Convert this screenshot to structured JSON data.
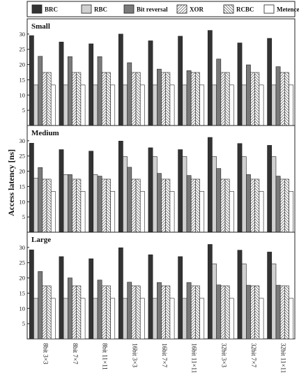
{
  "chart_data": {
    "type": "bar",
    "ylabel": "Access latency [ns]",
    "ylim": [
      0,
      35
    ],
    "yticks": [
      5,
      10,
      15,
      20,
      25,
      30
    ],
    "categories": [
      "8bit 3×3",
      "8bit 7×7",
      "8bit 11×11",
      "16bit 3×3",
      "16bit 7×7",
      "16bit 11×11",
      "32bit 3×3",
      "32bit 7×7",
      "32bit 11×11"
    ],
    "legend": [
      "BRC",
      "RBC",
      "Bit reversal",
      "XOR",
      "RCBC",
      "Metencephalon"
    ],
    "series_style": [
      {
        "fill": "#333333",
        "pattern": "none"
      },
      {
        "fill": "#d0d0d0",
        "pattern": "none"
      },
      {
        "fill": "#7a7a7a",
        "pattern": "none"
      },
      {
        "fill": "#ffffff",
        "pattern": "diag-forward"
      },
      {
        "fill": "#ffffff",
        "pattern": "diag-back"
      },
      {
        "fill": "#ffffff",
        "pattern": "none"
      }
    ],
    "panels": [
      {
        "title": "Small",
        "series": [
          {
            "name": "BRC",
            "values": [
              29.5,
              27.4,
              26.8,
              30.0,
              27.8,
              29.3,
              31.2,
              27.1,
              28.6
            ]
          },
          {
            "name": "RBC",
            "values": [
              13.3,
              13.3,
              13.3,
              13.3,
              13.3,
              13.3,
              13.3,
              13.3,
              13.3
            ]
          },
          {
            "name": "Bit reversal",
            "values": [
              22.7,
              22.6,
              22.6,
              20.6,
              18.5,
              18.0,
              21.8,
              19.9,
              19.3
            ]
          },
          {
            "name": "XOR",
            "values": [
              17.4,
              17.4,
              17.4,
              17.4,
              17.4,
              17.4,
              17.4,
              17.4,
              17.4
            ]
          },
          {
            "name": "RCBC",
            "values": [
              17.4,
              17.4,
              17.4,
              17.4,
              17.4,
              17.4,
              17.4,
              17.4,
              17.4
            ]
          },
          {
            "name": "Metencephalon",
            "values": [
              13.3,
              13.3,
              13.3,
              13.3,
              13.3,
              13.3,
              13.3,
              13.3,
              13.3
            ]
          }
        ]
      },
      {
        "title": "Medium",
        "series": [
          {
            "name": "BRC",
            "values": [
              29.2,
              27.1,
              26.6,
              29.9,
              27.7,
              27.1,
              31.1,
              29.1,
              28.5
            ]
          },
          {
            "name": "RBC",
            "values": [
              17.7,
              18.9,
              18.9,
              24.8,
              24.8,
              24.8,
              24.8,
              24.8,
              24.8
            ]
          },
          {
            "name": "Bit reversal",
            "values": [
              21.2,
              18.9,
              18.4,
              21.3,
              19.3,
              18.6,
              20.9,
              18.9,
              18.4
            ]
          },
          {
            "name": "XOR",
            "values": [
              17.4,
              17.4,
              17.4,
              17.4,
              17.4,
              17.4,
              17.4,
              17.4,
              17.4
            ]
          },
          {
            "name": "RCBC",
            "values": [
              17.4,
              17.4,
              17.4,
              17.4,
              17.4,
              17.4,
              17.4,
              17.4,
              17.4
            ]
          },
          {
            "name": "Metencephalon",
            "values": [
              13.4,
              13.4,
              13.4,
              13.4,
              13.4,
              13.4,
              13.4,
              13.4,
              13.4
            ]
          }
        ]
      },
      {
        "title": "Large",
        "series": [
          {
            "name": "BRC",
            "values": [
              29.2,
              27.0,
              26.3,
              29.9,
              27.6,
              27.0,
              31.0,
              29.1,
              28.5
            ]
          },
          {
            "name": "RBC",
            "values": [
              13.3,
              13.3,
              13.3,
              13.3,
              13.3,
              13.3,
              24.6,
              24.6,
              24.6
            ]
          },
          {
            "name": "Bit reversal",
            "values": [
              22.1,
              20.0,
              19.3,
              18.6,
              18.5,
              18.5,
              17.7,
              17.6,
              17.6
            ]
          },
          {
            "name": "XOR",
            "values": [
              17.4,
              17.4,
              17.4,
              17.4,
              17.4,
              17.4,
              17.4,
              17.4,
              17.4
            ]
          },
          {
            "name": "RCBC",
            "values": [
              17.4,
              17.4,
              17.4,
              17.4,
              17.4,
              17.4,
              17.4,
              17.4,
              17.4
            ]
          },
          {
            "name": "Metencephalon",
            "values": [
              13.3,
              13.3,
              13.3,
              13.3,
              13.3,
              13.3,
              13.3,
              13.3,
              13.3
            ]
          }
        ]
      }
    ]
  }
}
